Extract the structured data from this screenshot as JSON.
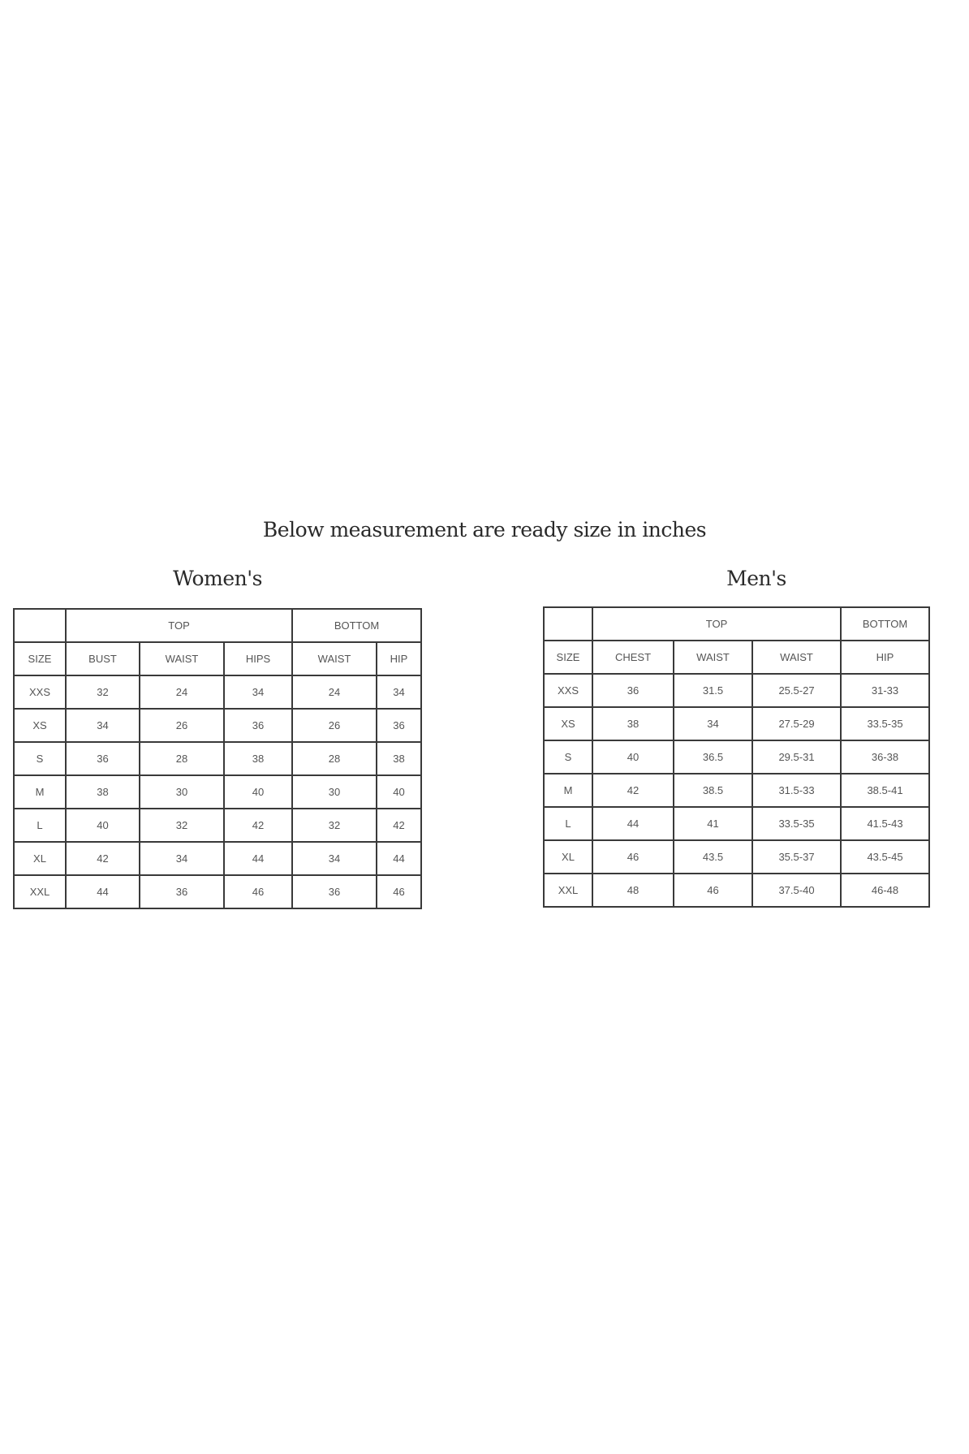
{
  "heading": "Below measurement are ready size in inches",
  "women": {
    "title": "Women's",
    "groups": {
      "blank": "",
      "top": "TOP",
      "bottom": "BOTTOM"
    },
    "columns": [
      "SIZE",
      "BUST",
      "WAIST",
      "HIPS",
      "WAIST",
      "HIP"
    ],
    "rows": [
      [
        "XXS",
        "32",
        "24",
        "34",
        "24",
        "34"
      ],
      [
        "XS",
        "34",
        "26",
        "36",
        "26",
        "36"
      ],
      [
        "S",
        "36",
        "28",
        "38",
        "28",
        "38"
      ],
      [
        "M",
        "38",
        "30",
        "40",
        "30",
        "40"
      ],
      [
        "L",
        "40",
        "32",
        "42",
        "32",
        "42"
      ],
      [
        "XL",
        "42",
        "34",
        "44",
        "34",
        "44"
      ],
      [
        "XXL",
        "44",
        "36",
        "46",
        "36",
        "46"
      ]
    ]
  },
  "men": {
    "title": "Men's",
    "groups": {
      "blank": "",
      "top": "TOP",
      "bottom": "BOTTOM"
    },
    "columns": [
      "SIZE",
      "CHEST",
      "WAIST",
      "WAIST",
      "HIP"
    ],
    "rows": [
      [
        "XXS",
        "36",
        "31.5",
        "25.5-27",
        "31-33"
      ],
      [
        "XS",
        "38",
        "34",
        "27.5-29",
        "33.5-35"
      ],
      [
        "S",
        "40",
        "36.5",
        "29.5-31",
        "36-38"
      ],
      [
        "M",
        "42",
        "38.5",
        "31.5-33",
        "38.5-41"
      ],
      [
        "L",
        "44",
        "41",
        "33.5-35",
        "41.5-43"
      ],
      [
        "XL",
        "46",
        "43.5",
        "35.5-37",
        "43.5-45"
      ],
      [
        "XXL",
        "48",
        "46",
        "37.5-40",
        "46-48"
      ]
    ]
  }
}
